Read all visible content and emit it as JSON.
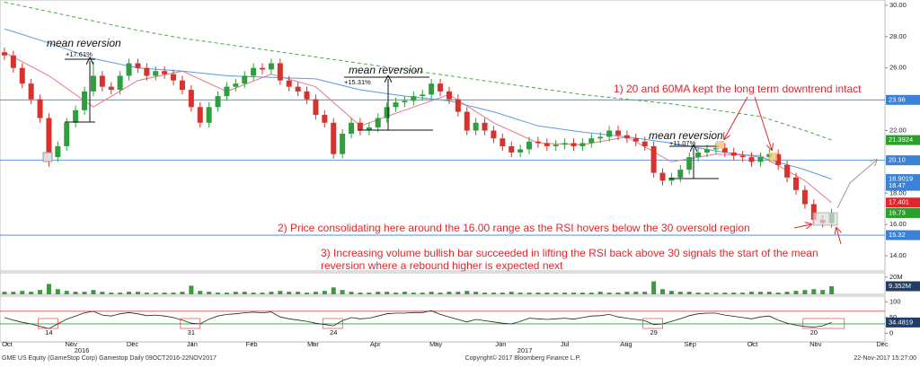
{
  "chart_data": {
    "type": "candlestick",
    "footer_left": "GME US Equity (GameStop Corp) Gamestop  Daily 09OCT2016-22NOV2017",
    "footer_center": "Copyright© 2017 Bloomberg Finance L.P.",
    "footer_right": "22-Nov-2017 15:27:00",
    "xlim": [
      -0.5,
      99
    ],
    "xticks": [
      {
        "value": 0.3,
        "label": "Oct"
      },
      {
        "value": 7.5,
        "label": "Nov"
      },
      {
        "value": 14.4,
        "label": "Dec"
      },
      {
        "value": 21.1,
        "label": "Jan"
      },
      {
        "value": 27.8,
        "label": "Feb"
      },
      {
        "value": 34.7,
        "label": "Mar"
      },
      {
        "value": 41.7,
        "label": "Apr"
      },
      {
        "value": 48.5,
        "label": "May"
      },
      {
        "value": 55.8,
        "label": "Jun"
      },
      {
        "value": 63,
        "label": "Jul"
      },
      {
        "value": 69.9,
        "label": "Aug"
      },
      {
        "value": 77.1,
        "label": "Sep"
      },
      {
        "value": 84.1,
        "label": "Oct"
      },
      {
        "value": 91.2,
        "label": "Nov"
      },
      {
        "value": 98.7,
        "label": "Dec"
      }
    ],
    "year_ticks": [
      {
        "value": 8.7,
        "label": "2016"
      },
      {
        "value": 58.5,
        "label": "2017"
      }
    ],
    "price": {
      "ylim": [
        13.03,
        30.34
      ],
      "yticks": [
        {
          "value": 14,
          "label": "14.00"
        },
        {
          "value": 16,
          "label": "16.00"
        },
        {
          "value": 18,
          "label": "18.00"
        },
        {
          "value": 22,
          "label": "22.00"
        },
        {
          "value": 26,
          "label": "26.00"
        },
        {
          "value": 28,
          "label": "28.00"
        },
        {
          "value": 30,
          "label": "30.00"
        }
      ],
      "up_color": "#2f9e3f",
      "down_color": "#d9312b",
      "open": [
        27.0,
        26.8,
        26.0,
        25.0,
        24.0,
        22.8,
        20.3,
        21.0,
        22.5,
        23.3,
        24.5,
        25.5,
        24.8,
        24.6,
        25.5,
        26.3,
        26.0,
        25.5,
        25.8,
        25.6,
        25.2,
        24.6,
        23.5,
        22.5,
        23.5,
        24.2,
        24.8,
        25.0,
        25.5,
        26.0,
        25.9,
        26.3,
        25.2,
        24.8,
        24.5,
        24.0,
        23.0,
        22.5,
        20.5,
        21.8,
        22.5,
        22.0,
        22.2,
        22.8,
        23.5,
        23.8,
        23.9,
        24.2,
        24.3,
        25.0,
        24.5,
        24.0,
        23.2,
        22.0,
        22.5,
        22.0,
        21.5,
        21.0,
        20.6,
        20.8,
        21.3,
        21.2,
        21.0,
        21.1,
        21.2,
        21.0,
        21.2,
        21.5,
        21.6,
        22.0,
        21.7,
        21.5,
        21.3,
        21.0,
        19.3,
        18.8,
        19.0,
        19.5,
        20.3,
        20.6,
        20.8,
        20.9,
        20.6,
        20.4,
        20.3,
        20.0,
        20.3,
        20.5,
        19.8,
        19.0,
        18.2,
        17.3,
        16.3,
        16.1
      ],
      "high": [
        27.3,
        27.1,
        26.3,
        25.3,
        24.3,
        23.1,
        21.3,
        22.8,
        23.6,
        24.8,
        26.4,
        25.8,
        25.1,
        25.8,
        26.6,
        26.6,
        26.3,
        26.1,
        26.1,
        25.9,
        25.5,
        24.9,
        23.8,
        23.8,
        24.5,
        25.1,
        25.3,
        25.8,
        26.3,
        26.3,
        26.6,
        26.6,
        25.5,
        25.1,
        24.8,
        24.3,
        23.3,
        22.8,
        22.1,
        22.8,
        22.8,
        22.5,
        23.1,
        23.8,
        24.1,
        24.2,
        24.5,
        24.6,
        25.3,
        25.3,
        24.8,
        24.3,
        23.5,
        22.8,
        22.8,
        22.3,
        21.8,
        21.3,
        21.1,
        21.6,
        21.6,
        21.5,
        21.4,
        21.5,
        21.5,
        21.5,
        21.8,
        21.9,
        22.3,
        22.3,
        22.0,
        21.8,
        21.6,
        21.3,
        19.6,
        19.3,
        19.8,
        20.6,
        20.9,
        21.1,
        21.2,
        21.2,
        20.9,
        20.7,
        20.6,
        20.6,
        20.8,
        20.8,
        20.1,
        19.3,
        18.5,
        17.6,
        16.6,
        17.0
      ],
      "low": [
        26.5,
        25.7,
        24.7,
        23.7,
        22.5,
        19.7,
        20.0,
        20.7,
        22.2,
        23.0,
        24.2,
        24.5,
        24.3,
        24.3,
        25.2,
        25.7,
        25.2,
        25.2,
        25.3,
        24.9,
        24.3,
        23.2,
        22.2,
        22.2,
        23.2,
        23.9,
        24.5,
        24.7,
        25.2,
        25.6,
        25.6,
        24.9,
        24.5,
        24.2,
        23.7,
        22.7,
        22.2,
        20.2,
        20.2,
        21.5,
        21.7,
        21.7,
        21.9,
        22.5,
        23.2,
        23.5,
        23.6,
        23.9,
        24.0,
        24.2,
        23.7,
        22.9,
        21.7,
        21.7,
        21.7,
        21.2,
        20.7,
        20.3,
        20.3,
        20.5,
        20.9,
        20.7,
        20.7,
        20.8,
        20.7,
        20.7,
        20.9,
        21.2,
        21.3,
        21.4,
        21.2,
        21.0,
        20.7,
        19.0,
        18.5,
        18.5,
        18.7,
        19.2,
        20.0,
        20.3,
        20.5,
        20.3,
        20.1,
        20.0,
        19.7,
        19.7,
        20.0,
        19.5,
        18.7,
        17.9,
        17.0,
        16.0,
        15.8,
        15.8
      ],
      "close": [
        26.8,
        26.0,
        25.0,
        24.0,
        22.8,
        20.3,
        21.0,
        22.5,
        23.3,
        24.5,
        25.5,
        24.8,
        24.6,
        25.5,
        26.3,
        26.0,
        25.5,
        25.8,
        25.6,
        25.2,
        24.6,
        23.5,
        22.5,
        23.5,
        24.2,
        24.8,
        25.0,
        25.5,
        26.0,
        25.9,
        26.3,
        25.2,
        24.8,
        24.5,
        24.0,
        23.0,
        22.5,
        20.5,
        21.8,
        22.5,
        22.0,
        22.2,
        22.8,
        23.5,
        23.8,
        23.9,
        24.2,
        24.3,
        25.0,
        24.5,
        24.0,
        23.2,
        22.0,
        22.5,
        22.0,
        21.5,
        21.0,
        20.6,
        20.8,
        21.3,
        21.2,
        21.0,
        21.1,
        21.2,
        21.0,
        21.2,
        21.5,
        21.6,
        22.0,
        21.7,
        21.5,
        21.3,
        21.0,
        19.3,
        18.8,
        19.0,
        19.5,
        20.3,
        20.6,
        20.8,
        20.9,
        20.6,
        20.4,
        20.3,
        20.0,
        20.3,
        20.5,
        19.8,
        19.0,
        18.2,
        17.3,
        16.3,
        16.1,
        16.7
      ],
      "tags": [
        {
          "value": 23.96,
          "label": "23.96",
          "color": "#3b82d6",
          "line": true
        },
        {
          "value": 21.3924,
          "label": "21.3924",
          "color": "#2ca02c",
          "line": false
        },
        {
          "value": 20.1,
          "label": "20.10",
          "color": "#3b82d6",
          "line": true
        },
        {
          "value": 18.9019,
          "label": "18.9019",
          "color": "#3b82d6",
          "line": false
        },
        {
          "value": 18.47,
          "label": "18.47",
          "color": "#3b82d6",
          "line": false
        },
        {
          "value": 17.401,
          "label": "17.401",
          "color": "#e0262d",
          "line": false
        },
        {
          "value": 16.73,
          "label": "16.73",
          "color": "#2ca02c",
          "line": false
        },
        {
          "value": 15.32,
          "label": "15.32",
          "color": "#3b82d6",
          "line": true
        }
      ],
      "moving_averages": {
        "x": [
          0,
          5,
          10,
          15,
          20,
          25,
          30,
          35,
          40,
          45,
          50,
          55,
          60,
          65,
          70,
          75,
          80,
          85,
          90,
          93
        ],
        "series": [
          {
            "color": "#e8778a",
            "dash": false,
            "values": [
              27.0,
              25.5,
              23.5,
              25.2,
              25.8,
              24.5,
              25.6,
              24.8,
              22.3,
              23.3,
              24.3,
              22.5,
              21.2,
              21.1,
              21.6,
              20.0,
              20.5,
              20.4,
              18.8,
              17.4
            ]
          },
          {
            "color": "#5b9be0",
            "dash": false,
            "values": [
              28.5,
              27.6,
              26.6,
              26.0,
              25.8,
              25.5,
              25.4,
              25.3,
              24.6,
              24.2,
              23.9,
              23.2,
              22.3,
              21.9,
              21.6,
              21.2,
              20.7,
              20.3,
              19.5,
              18.9
            ]
          },
          {
            "color": "#49a84a",
            "dash": true,
            "values": [
              30.2,
              29.6,
              29.0,
              28.4,
              27.9,
              27.5,
              27.1,
              26.7,
              26.3,
              25.9,
              25.5,
              25.1,
              24.7,
              24.3,
              24.0,
              23.7,
              23.3,
              22.9,
              22.0,
              21.4
            ]
          }
        ]
      }
    },
    "volume": {
      "ylim": [
        0,
        25
      ],
      "yticks": [
        {
          "value": 20,
          "label": "20M"
        }
      ],
      "color": "#3c9a3c",
      "values": [
        3,
        3,
        4,
        3,
        5,
        12,
        6,
        4,
        3,
        3,
        5,
        3,
        2,
        2,
        3,
        3,
        2,
        2,
        2,
        2,
        3,
        10,
        4,
        3,
        2,
        2,
        3,
        3,
        2,
        2,
        3,
        4,
        3,
        3,
        2,
        3,
        4,
        8,
        5,
        3,
        2,
        2,
        3,
        3,
        2,
        3,
        2,
        2,
        3,
        2,
        3,
        3,
        4,
        3,
        2,
        2,
        2,
        3,
        2,
        2,
        2,
        2,
        2,
        2,
        2,
        2,
        2,
        3,
        2,
        2,
        3,
        3,
        3,
        15,
        6,
        4,
        3,
        3,
        2,
        2,
        2,
        2,
        2,
        2,
        3,
        3,
        3,
        2,
        3,
        4,
        5,
        6,
        5,
        9.352
      ],
      "tag": {
        "value": 9.352,
        "label": "9.352M",
        "color": "#1f3d66"
      }
    },
    "rsi": {
      "ylim": [
        -27,
        118
      ],
      "yticks": [
        100,
        50,
        0
      ],
      "color": "#222",
      "values": [
        50,
        42,
        35,
        30,
        22,
        15,
        30,
        45,
        55,
        65,
        70,
        58,
        55,
        62,
        66,
        62,
        56,
        58,
        55,
        50,
        42,
        32,
        30,
        45,
        55,
        60,
        62,
        65,
        67,
        65,
        68,
        52,
        46,
        42,
        38,
        32,
        28,
        24,
        40,
        50,
        46,
        48,
        55,
        62,
        64,
        64,
        66,
        66,
        72,
        60,
        52,
        44,
        36,
        44,
        40,
        36,
        32,
        30,
        38,
        48,
        46,
        44,
        46,
        48,
        45,
        50,
        55,
        56,
        60,
        52,
        48,
        44,
        40,
        28,
        30,
        38,
        46,
        56,
        62,
        64,
        64,
        58,
        54,
        50,
        46,
        52,
        55,
        42,
        32,
        26,
        22,
        20,
        24,
        34.4819
      ],
      "levels": [
        {
          "value": 70,
          "color": "#e0262d"
        },
        {
          "value": 30,
          "color": "#2ca02c"
        }
      ],
      "tag": {
        "value": 34.4819,
        "label": "34.4819",
        "color": "#1f3d66"
      },
      "low_labels": [
        "14",
        "31",
        "24",
        "29",
        "20"
      ]
    },
    "annotations": {
      "mean_reversion_1": "mean reversion",
      "pct_1": "+17.61%",
      "mean_reversion_2": "mean reversion",
      "pct_2": "+15.31%",
      "mean_reversion_3": "mean reversion",
      "pct_3": "+11.07%",
      "note_1": "1) 20 and 60MA kept the long term downtrend intact",
      "note_2": "2) Price consolidating here around the 16.00 range as the RSI hovers below the 30 oversold region",
      "note_3_line_1": "3) Increasing volume bullish bar succeeded in lifting the RSI back above 30 signals the start of the mean",
      "note_3_line_2": "reversion where a rebound higher is expected next"
    }
  }
}
